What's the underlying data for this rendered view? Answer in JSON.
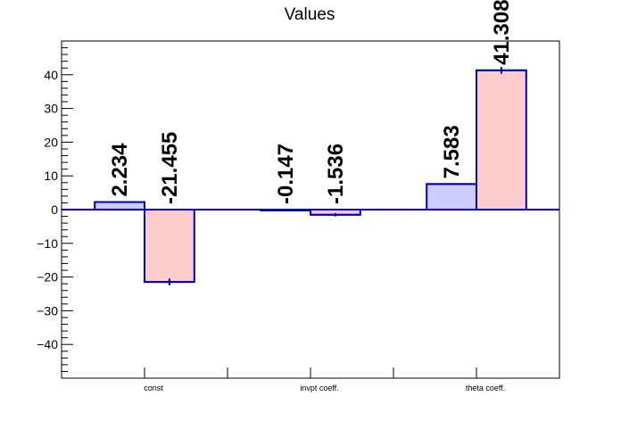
{
  "chart_data": {
    "type": "bar",
    "title": "Values",
    "xlabel": "",
    "ylabel": "",
    "categories": [
      "const",
      "invpt coeff.",
      "theta coeff."
    ],
    "ylim": [
      -50,
      50
    ],
    "yticks": [
      -40,
      -30,
      -20,
      -10,
      0,
      10,
      20,
      30,
      40
    ],
    "grid": false,
    "legend": "none",
    "series": [
      {
        "values": [
          2.234,
          -0.147,
          7.583
        ],
        "labels": [
          "2.234",
          "-0.147",
          "7.583"
        ],
        "fill": "#ccccff",
        "stroke": "#0000cc",
        "errors": [
          0,
          0,
          0
        ]
      },
      {
        "values": [
          -21.455,
          -1.536,
          41.308
        ],
        "labels": [
          "-21.455",
          "-1.536",
          "41.308"
        ],
        "fill": "#ffcccc",
        "stroke": "#0000cc",
        "errors": [
          1.0,
          0.5,
          1.0
        ]
      }
    ],
    "zero_line_color": "#0000cc"
  }
}
